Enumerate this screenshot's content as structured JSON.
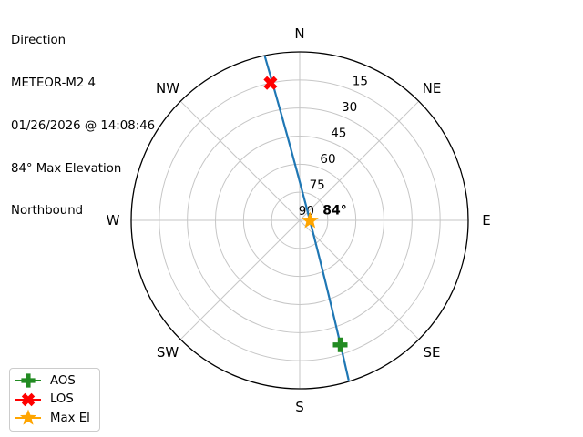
{
  "info": {
    "lines": [
      "Direction",
      "METEOR-M2 4",
      "01/26/2026 @ 14:08:46",
      "84° Max Elevation",
      "Northbound"
    ]
  },
  "legend": {
    "items": [
      {
        "label": "AOS",
        "shape": "plus",
        "color": "#228B22"
      },
      {
        "label": "LOS",
        "shape": "x",
        "color": "#ff0000"
      },
      {
        "label": "Max El",
        "shape": "star",
        "color": "#ffa500"
      }
    ]
  },
  "chart_data": {
    "type": "line",
    "projection": "polar-azimuth-elevation",
    "title": "Direction",
    "satellite": "METEOR-M2 4",
    "timestamp": "01/26/2026 @ 14:08:46",
    "max_elevation_deg": 84,
    "pass_direction": "Northbound",
    "compass_labels": [
      "N",
      "NE",
      "E",
      "SE",
      "S",
      "SW",
      "W",
      "NW"
    ],
    "elevation_rings_deg": [
      15,
      30,
      45,
      60,
      75
    ],
    "elevation_tick_labels": [
      "15",
      "30",
      "45",
      "60",
      "75",
      "90"
    ],
    "elevation_tick_azimuth_deg": 22.5,
    "elevation_axis_range": [
      90,
      0
    ],
    "grid_on": true,
    "grid_color": "#c6c6c6",
    "outer_circle_color": "#000000",
    "legend_position": "lower-left",
    "track": {
      "color": "#1f77b4",
      "start_az_el": [
        163,
        0.5
      ],
      "max_az_el": [
        92,
        84.5
      ],
      "end_az_el": [
        348,
        0
      ]
    },
    "markers": [
      {
        "name": "AOS",
        "shape": "plus",
        "color": "#228B22",
        "az": 162,
        "el": 20
      },
      {
        "name": "LOS",
        "shape": "x",
        "color": "#ff0000",
        "az": 348,
        "el": 15
      },
      {
        "name": "Max El",
        "shape": "star",
        "color": "#ffa500",
        "az": 92,
        "el": 84.5
      }
    ],
    "annotation": {
      "text": "84°",
      "az": 92,
      "el": 84.5
    }
  }
}
